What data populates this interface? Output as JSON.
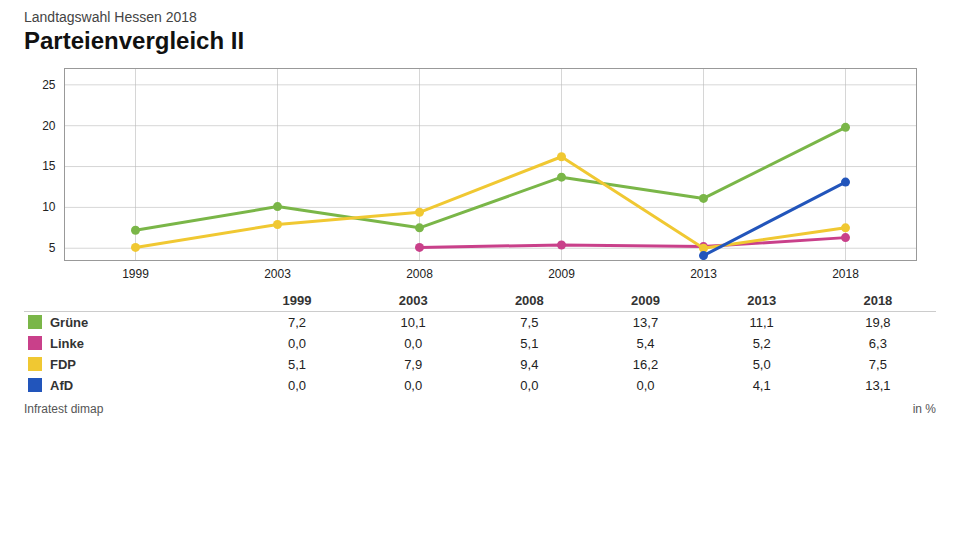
{
  "chart_data": {
    "type": "line",
    "subtitle": "Landtagswahl Hessen 2018",
    "title": "Parteienvergleich II",
    "source": "Infratest dimap",
    "y_label": "in %",
    "categories": [
      "1999",
      "2003",
      "2008",
      "2009",
      "2013",
      "2018"
    ],
    "series": [
      {
        "name": "Grüne",
        "color": "#7ab648",
        "marker": "circle",
        "values": [
          7.2,
          10.1,
          7.5,
          13.7,
          11.1,
          19.8
        ],
        "value_labels": [
          "7,2",
          "10,1",
          "7,5",
          "13,7",
          "11,1",
          "19,8"
        ]
      },
      {
        "name": "Linke",
        "color": "#c9408a",
        "marker": "circle",
        "values": [
          null,
          null,
          5.1,
          5.4,
          5.2,
          6.3
        ],
        "value_labels": [
          "0,0",
          "0,0",
          "5,1",
          "5,4",
          "5,2",
          "6,3"
        ]
      },
      {
        "name": "FDP",
        "color": "#f0c832",
        "marker": "circle",
        "values": [
          5.1,
          7.9,
          9.4,
          16.2,
          5.0,
          7.5
        ],
        "value_labels": [
          "5,1",
          "7,9",
          "9,4",
          "16,2",
          "5,0",
          "7,5"
        ]
      },
      {
        "name": "AfD",
        "color": "#2255bb",
        "marker": "circle",
        "values": [
          null,
          null,
          null,
          null,
          4.1,
          13.1
        ],
        "value_labels": [
          "0,0",
          "0,0",
          "0,0",
          "0,0",
          "4,1",
          "13,1"
        ]
      }
    ],
    "ylim": [
      3.5,
      27
    ],
    "yticks": [
      5,
      10,
      15,
      20,
      25
    ],
    "grid": true
  }
}
